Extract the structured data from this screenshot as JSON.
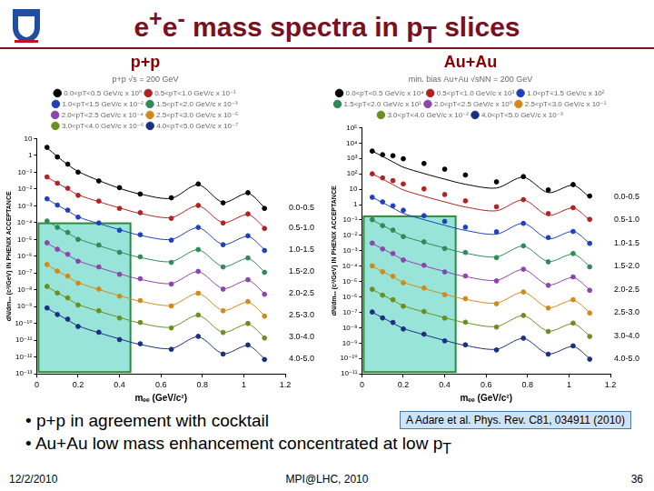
{
  "slide": {
    "title": [
      {
        "t": "e"
      },
      {
        "t": "+",
        "style": "sup"
      },
      {
        "t": "e"
      },
      {
        "t": "-",
        "style": "sup"
      },
      {
        "t": " mass spectra in p"
      },
      {
        "t": "T",
        "style": "sub"
      },
      {
        "t": " slices"
      }
    ],
    "bullets": [
      [
        {
          "t": "• p+p in agreement with cocktail"
        }
      ],
      [
        {
          "t": "• Au+Au low mass enhancement concentrated at low p"
        },
        {
          "t": "T",
          "style": "sub"
        }
      ]
    ],
    "reference": "A Adare et al. Phys. Rev. C81, 034911 (2010)",
    "footer": {
      "date": "12/2/2010",
      "event": "MPI@LHC, 2010",
      "page": "36"
    }
  },
  "chart_data": [
    {
      "type": "scatter",
      "title": "p+p",
      "legend_title": "p+p √s = 200 GeV",
      "legend": "top",
      "x_label": "mₑₑ (GeV/c²)",
      "y_label": "dN/dmₑₑ (c²/GeV) IN PHENIX ACCEPTANCE",
      "log": "y",
      "grid": false,
      "marker": "circle",
      "xlim": [
        0,
        1.2
      ],
      "xticks": [
        0,
        0.2,
        0.4,
        0.6,
        0.8,
        1,
        1.2
      ],
      "ylim": [
        1e-13,
        10
      ],
      "yticks": [
        10,
        1,
        {
          "value": 0.1,
          "label": "10⁻¹"
        },
        {
          "value": 0.01,
          "label": "10⁻²"
        },
        {
          "value": 0.001,
          "label": "10⁻³"
        },
        {
          "value": 0.0001,
          "label": "10⁻⁴"
        },
        {
          "value": 1e-05,
          "label": "10⁻⁵"
        },
        {
          "value": 1e-06,
          "label": "10⁻⁶"
        },
        {
          "value": 1e-07,
          "label": "10⁻⁷"
        },
        {
          "value": 1e-08,
          "label": "10⁻⁸"
        },
        {
          "value": 1e-09,
          "label": "10⁻⁹"
        },
        {
          "value": 1e-10,
          "label": "10⁻¹⁰"
        },
        {
          "value": 1e-11,
          "label": "10⁻¹¹"
        },
        {
          "value": 1e-12,
          "label": "10⁻¹²"
        },
        {
          "value": 1e-13,
          "label": "10⁻¹³"
        }
      ],
      "x": [
        0.05,
        0.1,
        0.15,
        0.2,
        0.3,
        0.4,
        0.5,
        0.65,
        0.78,
        0.9,
        1.02,
        1.1
      ],
      "series": [
        {
          "name": "0.0<pT<0.5 GeV/c x 10⁰",
          "slice_label": "0.0-0.5",
          "color": "#000000",
          "values": [
            3,
            0.8,
            0.3,
            0.1,
            0.03,
            0.012,
            0.005,
            0.003,
            0.02,
            0.0015,
            0.006,
            0.0007
          ],
          "cocktail": [
            2.8,
            0.85,
            0.28,
            0.11,
            0.032,
            0.011,
            0.005,
            0.0028,
            0.018,
            0.0016,
            0.0055,
            0.0008
          ]
        },
        {
          "name": "0.5<pT<1.0 GeV/c x 10⁻¹",
          "slice_label": "0.5-1.0",
          "color": "#b22222",
          "values": [
            0.052,
            0.022,
            0.011,
            0.0042,
            0.0019,
            0.0007,
            0.00039,
            0.00018,
            0.00105,
            9.5e-05,
            0.00033,
            4.5e-05
          ],
          "cocktail": [
            0.05,
            0.0225,
            0.01,
            0.0045,
            0.00175,
            0.00075,
            0.00035,
            0.0002,
            0.001,
            0.0001,
            0.0003,
            5e-05
          ]
        },
        {
          "name": "1.0<pT<1.5 GeV/c x 10⁻²",
          "slice_label": "1.0-1.5",
          "color": "#1f3fbf",
          "values": [
            0.0026,
            0.0011,
            0.00055,
            0.00021,
            9.5e-05,
            3.5e-05,
            1.9e-05,
            9e-06,
            5.2e-05,
            4.8e-06,
            1.65e-05,
            2.2e-06
          ],
          "cocktail": [
            0.0025,
            0.0011,
            0.0005,
            0.00022,
            8.8e-05,
            3.8e-05,
            1.75e-05,
            1e-05,
            5e-05,
            5e-06,
            1.5e-05,
            2.5e-06
          ]
        },
        {
          "name": "1.5<pT<2.0 GeV/c x 10⁻³",
          "slice_label": "1.5-2.0",
          "color": "#2e8b57",
          "values": [
            0.000125,
            5.2e-05,
            2.6e-05,
            1e-05,
            4.6e-06,
            1.7e-06,
            9.2e-07,
            4.3e-07,
            2.5e-06,
            2.3e-07,
            7.9e-07,
            1.1e-07
          ],
          "cocktail": [
            0.00012,
            5.4e-05,
            2.4e-05,
            1.1e-05,
            4.2e-06,
            1.8e-06,
            8.4e-07,
            4.8e-07,
            2.4e-06,
            2.4e-07,
            7.2e-07,
            1.2e-07
          ]
        },
        {
          "name": "2.0<pT<2.5 GeV/c x 10⁻⁴",
          "slice_label": "2.0-2.5",
          "color": "#8e44ad",
          "values": [
            6.3e-06,
            2.6e-06,
            1.3e-06,
            5e-07,
            2.3e-07,
            8.4e-08,
            4.6e-08,
            2.2e-08,
            1.26e-07,
            1.1e-08,
            4e-08,
            5.4e-09
          ],
          "cocktail": [
            6e-06,
            2.7e-06,
            1.2e-06,
            5.4e-07,
            2.1e-07,
            9e-08,
            4.2e-08,
            2.4e-08,
            1.2e-07,
            1.2e-08,
            3.6e-08,
            6e-09
          ]
        },
        {
          "name": "2.5<pT<3.0 GeV/c x 10⁻⁵",
          "slice_label": "2.5-3.0",
          "color": "#d08a1c",
          "values": [
            3.2e-07,
            1.3e-07,
            6.6e-08,
            2.5e-08,
            1.1e-08,
            4.2e-09,
            2.3e-09,
            1.1e-09,
            6.3e-09,
            5.7e-10,
            2e-09,
            2.7e-10
          ],
          "cocktail": [
            3e-07,
            1.35e-07,
            6e-08,
            2.7e-08,
            1.05e-08,
            4.5e-09,
            2.1e-09,
            1.2e-09,
            6e-09,
            6e-10,
            1.8e-09,
            3e-10
          ]
        },
        {
          "name": "3.0<pT<4.0 GeV/c x 10⁻⁶",
          "slice_label": "3.0-4.0",
          "color": "#6b8e23",
          "values": [
            1.6e-08,
            6.5e-09,
            3.3e-09,
            1.25e-09,
            5.7e-10,
            2.1e-10,
            1.15e-10,
            5.4e-11,
            3.2e-10,
            2.9e-11,
            1e-10,
            1.35e-11
          ],
          "cocktail": [
            1.5e-08,
            6.8e-09,
            3e-09,
            1.35e-09,
            5.3e-10,
            2.3e-10,
            1.05e-10,
            6e-11,
            3e-10,
            3e-11,
            9e-11,
            1.5e-11
          ]
        },
        {
          "name": "4.0<pT<5.0 GeV/c x 10⁻⁷",
          "slice_label": "4.0-5.0",
          "color": "#1a2f80",
          "values": [
            8.4e-10,
            3.4e-10,
            1.8e-10,
            6.6e-11,
            3e-11,
            1.1e-11,
            6.2e-12,
            2.9e-12,
            1.7e-11,
            1.5e-12,
            5.3e-12,
            7.2e-13
          ],
          "cocktail": [
            8e-10,
            3.6e-10,
            1.6e-10,
            7.2e-11,
            2.8e-11,
            1.2e-11,
            5.6e-12,
            3.2e-12,
            1.6e-11,
            1.6e-12,
            4.8e-12,
            8e-13
          ]
        }
      ]
    },
    {
      "type": "scatter",
      "title": "Au+Au",
      "legend_title": "min. bias Au+Au √sNN = 200 GeV",
      "legend": "top",
      "x_label": "mₑₑ (GeV/c²)",
      "y_label": "dN/dmₑₑ (c²/GeV) IN PHENIX ACCEPTANCE",
      "log": "y",
      "grid": false,
      "marker": "circle",
      "xlim": [
        0,
        1.2
      ],
      "xticks": [
        0,
        0.2,
        0.4,
        0.6,
        0.8,
        1,
        1.2
      ],
      "ylim": [
        1e-11,
        100000
      ],
      "yticks": [
        {
          "value": 100000,
          "label": "10⁵"
        },
        {
          "value": 10000,
          "label": "10⁴"
        },
        {
          "value": 1000,
          "label": "10³"
        },
        {
          "value": 100,
          "label": "10²"
        },
        10,
        1,
        {
          "value": 0.1,
          "label": "10⁻¹"
        },
        {
          "value": 0.01,
          "label": "10⁻²"
        },
        {
          "value": 0.001,
          "label": "10⁻³"
        },
        {
          "value": 0.0001,
          "label": "10⁻⁴"
        },
        {
          "value": 1e-05,
          "label": "10⁻⁵"
        },
        {
          "value": 1e-06,
          "label": "10⁻⁶"
        },
        {
          "value": 1e-07,
          "label": "10⁻⁷"
        },
        {
          "value": 1e-08,
          "label": "10⁻⁸"
        },
        {
          "value": 1e-09,
          "label": "10⁻⁹"
        },
        {
          "value": 1e-10,
          "label": "10⁻¹⁰"
        },
        {
          "value": 1e-11,
          "label": "10⁻¹¹"
        }
      ],
      "x": [
        0.05,
        0.1,
        0.15,
        0.2,
        0.3,
        0.4,
        0.5,
        0.65,
        0.78,
        0.9,
        1.02,
        1.1
      ],
      "series": [
        {
          "name": "0.0<pT<0.5 GeV/c x 10⁴",
          "slice_label": "0.0-0.5",
          "color": "#000000",
          "values": [
            3000,
            1750,
            1500,
            950,
            470,
            200,
            84,
            30,
            66,
            9,
            20,
            3.6
          ],
          "cocktail": [
            3000,
            1350,
            600,
            270,
            105,
            45,
            21,
            12,
            60,
            6,
            18,
            3
          ]
        },
        {
          "name": "0.5<pT<1.0 GeV/c x 10³",
          "slice_label": "0.5-1.0",
          "color": "#b22222",
          "values": [
            100,
            54,
            36,
            22,
            10.5,
            4.5,
            1.75,
            0.72,
            2.1,
            0.26,
            0.63,
            0.11
          ],
          "cocktail": [
            100,
            45,
            20,
            9,
            3.5,
            1.5,
            0.7,
            0.4,
            2,
            0.2,
            0.6,
            0.1
          ]
        },
        {
          "name": "1.0<pT<1.5 GeV/c x 10²",
          "slice_label": "1.0-1.5",
          "color": "#1f3fbf",
          "values": [
            3,
            1.5,
            0.84,
            0.43,
            0.19,
            0.081,
            0.034,
            0.017,
            0.06,
            0.0072,
            0.018,
            0.003
          ],
          "cocktail": [
            3,
            1.35,
            0.6,
            0.27,
            0.105,
            0.045,
            0.021,
            0.012,
            0.06,
            0.006,
            0.018,
            0.003
          ]
        },
        {
          "name": "1.5<pT<2.0 GeV/c x 10¹",
          "slice_label": "1.5-2.0",
          "color": "#2e8b57",
          "values": [
            0.105,
            0.043,
            0.022,
            0.0083,
            0.0038,
            0.0014,
            0.00077,
            0.00036,
            0.0021,
            0.00019,
            0.00066,
            9e-05
          ],
          "cocktail": [
            0.1,
            0.045,
            0.02,
            0.009,
            0.0035,
            0.0015,
            0.0007,
            0.0004,
            0.002,
            0.0002,
            0.0006,
            0.0001
          ]
        },
        {
          "name": "2.0<pT<2.5 GeV/c x 10⁰",
          "slice_label": "2.0-2.5",
          "color": "#8e44ad",
          "values": [
            0.00315,
            0.0013,
            0.00066,
            0.00025,
            0.000114,
            4.2e-05,
            2.3e-05,
            1.1e-05,
            6.3e-05,
            5.7e-06,
            2e-05,
            2.7e-06
          ],
          "cocktail": [
            0.003,
            0.00135,
            0.0006,
            0.00027,
            0.000105,
            4.5e-05,
            2.1e-05,
            1.2e-05,
            6e-05,
            6e-06,
            1.8e-05,
            3e-06
          ]
        },
        {
          "name": "2.5<pT<3.0 GeV/c x 10⁻¹",
          "slice_label": "2.5-3.0",
          "color": "#d08a1c",
          "values": [
            0.000105,
            4.3e-05,
            2.2e-05,
            8.3e-06,
            3.8e-06,
            1.4e-06,
            7.7e-07,
            3.6e-07,
            2.1e-06,
            1.9e-07,
            6.6e-07,
            9e-08
          ],
          "cocktail": [
            0.0001,
            4.5e-05,
            2e-05,
            9e-06,
            3.5e-06,
            1.5e-06,
            7e-07,
            4e-07,
            2e-06,
            2e-07,
            6e-07,
            1e-07
          ]
        },
        {
          "name": "3.0<pT<4.0 GeV/c x 10⁻²",
          "slice_label": "3.0-4.0",
          "color": "#6b8e23",
          "values": [
            3.15e-06,
            1.3e-06,
            6.6e-07,
            2.5e-07,
            1.14e-07,
            4.2e-08,
            2.3e-08,
            1.1e-08,
            6.3e-08,
            5.7e-09,
            2e-08,
            2.7e-09
          ],
          "cocktail": [
            3e-06,
            1.35e-06,
            6e-07,
            2.7e-07,
            1.05e-07,
            4.5e-08,
            2.1e-08,
            1.2e-08,
            6e-08,
            6e-09,
            1.8e-08,
            3e-09
          ]
        },
        {
          "name": "4.0<pT<5.0 GeV/c x 10⁻³",
          "slice_label": "4.0-5.0",
          "color": "#1a2f80",
          "values": [
            1.05e-07,
            4.3e-08,
            2.2e-08,
            8.3e-09,
            3.8e-09,
            1.4e-09,
            7.7e-10,
            3.6e-10,
            2.1e-09,
            1.9e-10,
            6.6e-10,
            9e-11
          ],
          "cocktail": [
            1e-07,
            4.5e-08,
            2e-08,
            9e-09,
            3.5e-09,
            1.5e-09,
            7e-10,
            4e-10,
            2e-09,
            2e-10,
            6e-10,
            1e-10
          ]
        }
      ]
    }
  ]
}
